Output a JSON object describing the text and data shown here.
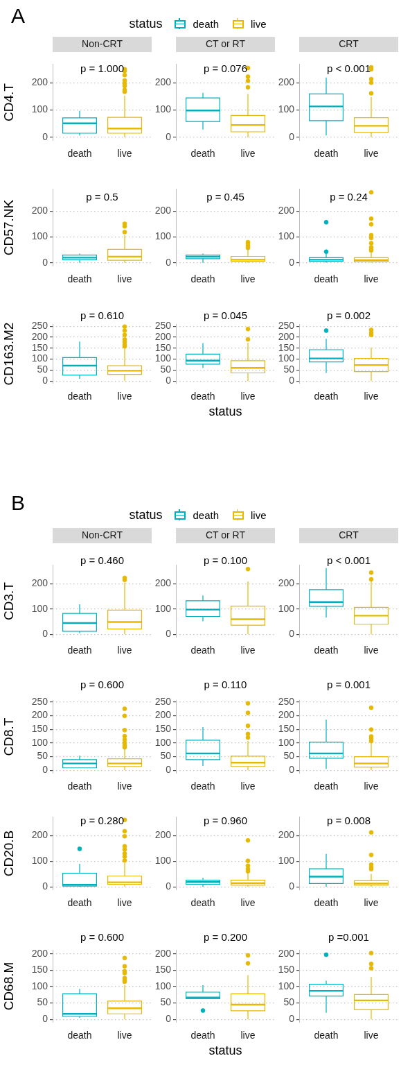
{
  "chart_data": [
    {
      "type": "box",
      "title": "Non-CRT",
      "ylabel": "CD4.T",
      "legend": "top",
      "legend_title": "status",
      "annotations": [
        "p = 1.000",
        "A"
      ],
      "categories": [
        "death",
        "live"
      ],
      "ylim": [
        -13,
        269
      ],
      "yticks": [
        0,
        100,
        200
      ],
      "grid": "y",
      "series": [
        {
          "name": "death",
          "color": "#00afbb",
          "boxes": [
            {
              "low": 7,
              "q1": 15,
              "median": 51,
              "q3": 71,
              "high": 97
            },
            null
          ]
        },
        {
          "name": "live",
          "color": "#e7b800",
          "boxes": [
            null,
            {
              "low": 0,
              "q1": 15,
              "median": 32,
              "q3": 73,
              "high": 153,
              "outliers": [
                167,
                174,
                188,
                197,
                208,
                228,
                243,
                249
              ]
            }
          ]
        }
      ]
    },
    {
      "type": "box",
      "title": "CT or RT",
      "annotations": [
        "p = 0.076"
      ],
      "categories": [
        "death",
        "live"
      ],
      "ylim": [
        -13,
        269
      ],
      "yticks": [
        0,
        100,
        200
      ],
      "grid": "y",
      "series": [
        {
          "color": "#00afbb",
          "boxes": [
            {
              "low": 28,
              "q1": 58,
              "median": 98,
              "q3": 144,
              "high": 163
            },
            null
          ]
        },
        {
          "color": "#e7b800",
          "boxes": [
            null,
            {
              "low": 0,
              "q1": 20,
              "median": 45,
              "q3": 80,
              "high": 159,
              "outliers": [
                183,
                207,
                222,
                254
              ]
            }
          ]
        }
      ]
    },
    {
      "type": "box",
      "title": "CRT",
      "annotations": [
        "p < 0.001"
      ],
      "categories": [
        "death",
        "live"
      ],
      "ylim": [
        -13,
        269
      ],
      "yticks": [
        0,
        100,
        200
      ],
      "grid": "y",
      "series": [
        {
          "color": "#00afbb",
          "boxes": [
            {
              "low": 7,
              "q1": 61,
              "median": 113,
              "q3": 159,
              "high": 219
            },
            null
          ]
        },
        {
          "color": "#e7b800",
          "boxes": [
            null,
            {
              "low": 0,
              "q1": 18,
              "median": 42,
              "q3": 72,
              "high": 148,
              "outliers": [
                161,
                200,
                213,
                249,
                256
              ]
            }
          ]
        }
      ]
    },
    {
      "type": "box",
      "ylabel": "CD57.NK",
      "annotations": [
        "p = 0.5"
      ],
      "categories": [
        "death",
        "live"
      ],
      "ylim": [
        -14,
        287
      ],
      "yticks": [
        0,
        100,
        200
      ],
      "grid": "y",
      "series": [
        {
          "color": "#00afbb",
          "boxes": [
            {
              "low": 0,
              "q1": 12,
              "median": 20,
              "q3": 30,
              "high": 36
            },
            null
          ]
        },
        {
          "color": "#e7b800",
          "boxes": [
            null,
            {
              "low": 0,
              "q1": 10,
              "median": 24,
              "q3": 52,
              "high": 107,
              "outliers": [
                119,
                141,
                151
              ]
            }
          ]
        }
      ]
    },
    {
      "type": "box",
      "annotations": [
        "p = 0.45"
      ],
      "categories": [
        "death",
        "live"
      ],
      "ylim": [
        -14,
        287
      ],
      "yticks": [
        0,
        100,
        200
      ],
      "grid": "y",
      "series": [
        {
          "color": "#00afbb",
          "boxes": [
            {
              "low": 0,
              "q1": 16,
              "median": 24,
              "q3": 30,
              "high": 36
            },
            null
          ]
        },
        {
          "color": "#e7b800",
          "boxes": [
            null,
            {
              "low": 0,
              "q1": 6,
              "median": 12,
              "q3": 25,
              "high": 54,
              "outliers": [
                58,
                66,
                74,
                80
              ]
            }
          ]
        }
      ]
    },
    {
      "type": "box",
      "annotations": [
        "p = 0.24"
      ],
      "categories": [
        "death",
        "live"
      ],
      "ylim": [
        -14,
        287
      ],
      "yticks": [
        0,
        100,
        200
      ],
      "grid": "y",
      "series": [
        {
          "color": "#00afbb",
          "boxes": [
            {
              "low": 0,
              "q1": 6,
              "median": 12,
              "q3": 20,
              "high": 36,
              "outliers": [
                43,
                157
              ]
            },
            null
          ]
        },
        {
          "color": "#e7b800",
          "boxes": [
            null,
            {
              "low": 0,
              "q1": 4,
              "median": 10,
              "q3": 20,
              "high": 40,
              "outliers": [
                48,
                52,
                60,
                76,
                96,
                107,
                149,
                171,
                273
              ]
            }
          ]
        }
      ]
    },
    {
      "type": "box",
      "ylabel": "CD163.M2",
      "annotations": [
        "p = 0.610"
      ],
      "categories": [
        "death",
        "live"
      ],
      "ylim": [
        -12,
        260
      ],
      "yticks": [
        0,
        50,
        100,
        150,
        200,
        250
      ],
      "grid": "y",
      "series": [
        {
          "color": "#00afbb",
          "boxes": [
            {
              "low": 10,
              "q1": 27,
              "median": 70,
              "q3": 107,
              "high": 180
            },
            null
          ]
        },
        {
          "color": "#e7b800",
          "boxes": [
            null,
            {
              "low": 0,
              "q1": 30,
              "median": 47,
              "q3": 70,
              "high": 150,
              "outliers": [
                158,
                165,
                178,
                190,
                210,
                230,
                248
              ]
            }
          ]
        }
      ]
    },
    {
      "type": "box",
      "xlabel": "status",
      "annotations": [
        "p = 0.045"
      ],
      "categories": [
        "death",
        "live"
      ],
      "ylim": [
        -12,
        260
      ],
      "yticks": [
        0,
        50,
        100,
        150,
        200,
        250
      ],
      "grid": "y",
      "series": [
        {
          "color": "#00afbb",
          "boxes": [
            {
              "low": 60,
              "q1": 77,
              "median": 93,
              "q3": 123,
              "high": 173
            },
            null
          ]
        },
        {
          "color": "#e7b800",
          "boxes": [
            null,
            {
              "low": 0,
              "q1": 37,
              "median": 60,
              "q3": 93,
              "high": 175,
              "outliers": [
                190,
                237
              ]
            }
          ]
        }
      ]
    },
    {
      "type": "box",
      "annotations": [
        "p = 0.002"
      ],
      "categories": [
        "death",
        "live"
      ],
      "ylim": [
        -12,
        260
      ],
      "yticks": [
        0,
        50,
        100,
        150,
        200,
        250
      ],
      "grid": "y",
      "series": [
        {
          "color": "#00afbb",
          "boxes": [
            {
              "low": 37,
              "q1": 87,
              "median": 103,
              "q3": 143,
              "high": 193,
              "outliers": [
                230
              ]
            },
            null
          ]
        },
        {
          "color": "#e7b800",
          "boxes": [
            null,
            {
              "low": 0,
              "q1": 43,
              "median": 73,
              "q3": 103,
              "high": 153,
              "outliers": [
                210,
                220,
                233
              ]
            }
          ]
        }
      ]
    },
    {
      "type": "box",
      "title": "Non-CRT",
      "ylabel": "CD3.T",
      "legend": "top",
      "legend_title": "status",
      "annotations": [
        "p = 0.460",
        "B"
      ],
      "categories": [
        "death",
        "live"
      ],
      "ylim": [
        -13,
        276
      ],
      "yticks": [
        0,
        100,
        200
      ],
      "grid": "y",
      "series": [
        {
          "name": "death",
          "color": "#00afbb",
          "boxes": [
            {
              "low": 4,
              "q1": 12,
              "median": 45,
              "q3": 83,
              "high": 119
            },
            null
          ]
        },
        {
          "name": "live",
          "color": "#e7b800",
          "boxes": [
            null,
            {
              "low": 0,
              "q1": 21,
              "median": 49,
              "q3": 96,
              "high": 206,
              "outliers": [
                216,
                224
              ]
            }
          ]
        }
      ]
    },
    {
      "type": "box",
      "title": "CT or RT",
      "annotations": [
        "p = 0.100"
      ],
      "categories": [
        "death",
        "live"
      ],
      "ylim": [
        -13,
        276
      ],
      "yticks": [
        0,
        100,
        200
      ],
      "grid": "y",
      "series": [
        {
          "color": "#00afbb",
          "boxes": [
            {
              "low": 52,
              "q1": 71,
              "median": 98,
              "q3": 133,
              "high": 154
            },
            null
          ]
        },
        {
          "color": "#e7b800",
          "boxes": [
            null,
            {
              "low": 0,
              "q1": 36,
              "median": 60,
              "q3": 112,
              "high": 210,
              "outliers": [
                259
              ]
            }
          ]
        }
      ]
    },
    {
      "type": "box",
      "title": "CRT",
      "annotations": [
        "p < 0.001"
      ],
      "categories": [
        "death",
        "live"
      ],
      "ylim": [
        -13,
        276
      ],
      "yticks": [
        0,
        100,
        200
      ],
      "grid": "y",
      "series": [
        {
          "color": "#00afbb",
          "boxes": [
            {
              "low": 67,
              "q1": 111,
              "median": 128,
              "q3": 177,
              "high": 263
            },
            null
          ]
        },
        {
          "color": "#e7b800",
          "boxes": [
            null,
            {
              "low": 0,
              "q1": 40,
              "median": 74,
              "q3": 107,
              "high": 212,
              "outliers": [
                218,
                245
              ]
            }
          ]
        }
      ]
    },
    {
      "type": "box",
      "ylabel": "CD8.T",
      "annotations": [
        "p = 0.600"
      ],
      "categories": [
        "death",
        "live"
      ],
      "ylim": [
        -12,
        257
      ],
      "yticks": [
        0,
        50,
        100,
        150,
        200,
        250
      ],
      "grid": "y",
      "series": [
        {
          "color": "#00afbb",
          "boxes": [
            {
              "low": 9,
              "q1": 9,
              "median": 25,
              "q3": 39,
              "high": 54
            },
            null
          ]
        },
        {
          "color": "#e7b800",
          "boxes": [
            null,
            {
              "low": 0,
              "q1": 14,
              "median": 25,
              "q3": 42,
              "high": 80,
              "outliers": [
                84,
                91,
                100,
                112,
                125,
                147,
                199,
                225
              ]
            }
          ]
        }
      ]
    },
    {
      "type": "box",
      "annotations": [
        "p = 0.110"
      ],
      "categories": [
        "death",
        "live"
      ],
      "ylim": [
        -12,
        257
      ],
      "yticks": [
        0,
        50,
        100,
        150,
        200,
        250
      ],
      "grid": "y",
      "series": [
        {
          "color": "#00afbb",
          "boxes": [
            {
              "low": 16,
              "q1": 39,
              "median": 62,
              "q3": 110,
              "high": 158
            },
            null
          ]
        },
        {
          "color": "#e7b800",
          "boxes": [
            null,
            {
              "low": 0,
              "q1": 14,
              "median": 28,
              "q3": 52,
              "high": 108,
              "outliers": [
                120,
                133,
                163,
                210,
                245
              ]
            }
          ]
        }
      ]
    },
    {
      "type": "box",
      "annotations": [
        "p = 0.001"
      ],
      "categories": [
        "death",
        "live"
      ],
      "ylim": [
        -12,
        257
      ],
      "yticks": [
        0,
        50,
        100,
        150,
        200,
        250
      ],
      "grid": "y",
      "series": [
        {
          "color": "#00afbb",
          "boxes": [
            {
              "low": 5,
              "q1": 44,
              "median": 62,
              "q3": 103,
              "high": 185
            },
            null
          ]
        },
        {
          "color": "#e7b800",
          "boxes": [
            null,
            {
              "low": 0,
              "q1": 12,
              "median": 25,
              "q3": 50,
              "high": 103,
              "outliers": [
                107,
                116,
                124,
                149,
                229
              ]
            }
          ]
        }
      ]
    },
    {
      "type": "box",
      "ylabel": "CD20.B",
      "annotations": [
        "p = 0.280"
      ],
      "categories": [
        "death",
        "live"
      ],
      "ylim": [
        -13,
        275
      ],
      "yticks": [
        0,
        100,
        200
      ],
      "grid": "y",
      "series": [
        {
          "color": "#00afbb",
          "boxes": [
            {
              "low": 0,
              "q1": 3,
              "median": 8,
              "q3": 53,
              "high": 90,
              "outliers": [
                149
              ]
            },
            null
          ]
        },
        {
          "color": "#e7b800",
          "boxes": [
            null,
            {
              "low": 0,
              "q1": 10,
              "median": 18,
              "q3": 42,
              "high": 93,
              "outliers": [
                103,
                118,
                130,
                146,
                159,
                198,
                218,
                262
              ]
            }
          ]
        }
      ]
    },
    {
      "type": "box",
      "annotations": [
        "p = 0.960"
      ],
      "categories": [
        "death",
        "live"
      ],
      "ylim": [
        -13,
        275
      ],
      "yticks": [
        0,
        100,
        200
      ],
      "grid": "y",
      "series": [
        {
          "color": "#00afbb",
          "boxes": [
            {
              "low": 0,
              "q1": 10,
              "median": 19,
              "q3": 26,
              "high": 35
            },
            null
          ]
        },
        {
          "color": "#e7b800",
          "boxes": [
            null,
            {
              "low": 0,
              "q1": 6,
              "median": 14,
              "q3": 26,
              "high": 58,
              "outliers": [
                61,
                70,
                83,
                102,
                182
              ]
            }
          ]
        }
      ]
    },
    {
      "type": "box",
      "annotations": [
        "p = 0.008"
      ],
      "categories": [
        "death",
        "live"
      ],
      "ylim": [
        -13,
        275
      ],
      "yticks": [
        0,
        100,
        200
      ],
      "grid": "y",
      "series": [
        {
          "color": "#00afbb",
          "boxes": [
            {
              "low": 0,
              "q1": 13,
              "median": 40,
              "q3": 71,
              "high": 129
            },
            null
          ]
        },
        {
          "color": "#e7b800",
          "boxes": [
            null,
            {
              "low": 0,
              "q1": 6,
              "median": 13,
              "q3": 24,
              "high": 51,
              "outliers": [
                69,
                77,
                87,
                125,
                213
              ]
            }
          ]
        }
      ]
    },
    {
      "type": "box",
      "ylabel": "CD68.M",
      "annotations": [
        "p = 0.600"
      ],
      "categories": [
        "death",
        "live"
      ],
      "ylim": [
        -10,
        212
      ],
      "yticks": [
        0,
        50,
        100,
        150,
        200
      ],
      "grid": "y",
      "series": [
        {
          "color": "#00afbb",
          "boxes": [
            {
              "low": 5,
              "q1": 9,
              "median": 17,
              "q3": 78,
              "high": 93
            },
            null
          ]
        },
        {
          "color": "#e7b800",
          "boxes": [
            null,
            {
              "low": 0,
              "q1": 17,
              "median": 34,
              "q3": 56,
              "high": 105,
              "outliers": [
                115,
                119,
                126,
                141,
                147,
                162,
                187
              ]
            }
          ]
        }
      ]
    },
    {
      "type": "box",
      "xlabel": "status",
      "annotations": [
        "p = 0.200"
      ],
      "categories": [
        "death",
        "live"
      ],
      "ylim": [
        -10,
        212
      ],
      "yticks": [
        0,
        50,
        100,
        150,
        200
      ],
      "grid": "y",
      "series": [
        {
          "color": "#00afbb",
          "boxes": [
            {
              "low": 63,
              "q1": 63,
              "median": 67,
              "q3": 83,
              "high": 104,
              "outliers": [
                27
              ]
            },
            null
          ]
        },
        {
          "color": "#e7b800",
          "boxes": [
            null,
            {
              "low": 0,
              "q1": 26,
              "median": 45,
              "q3": 78,
              "high": 135,
              "outliers": [
                171,
                195
              ]
            }
          ]
        }
      ]
    },
    {
      "type": "box",
      "annotations": [
        "p =0.001"
      ],
      "categories": [
        "death",
        "live"
      ],
      "ylim": [
        -10,
        212
      ],
      "yticks": [
        0,
        50,
        100,
        150,
        200
      ],
      "grid": "y",
      "series": [
        {
          "color": "#00afbb",
          "boxes": [
            {
              "low": 20,
              "q1": 71,
              "median": 87,
              "q3": 107,
              "high": 118,
              "outliers": [
                197
              ]
            },
            null
          ]
        },
        {
          "color": "#e7b800",
          "boxes": [
            null,
            {
              "low": 0,
              "q1": 30,
              "median": 58,
              "q3": 76,
              "high": 129,
              "outliers": [
                156,
                169,
                202
              ]
            }
          ]
        }
      ]
    }
  ]
}
